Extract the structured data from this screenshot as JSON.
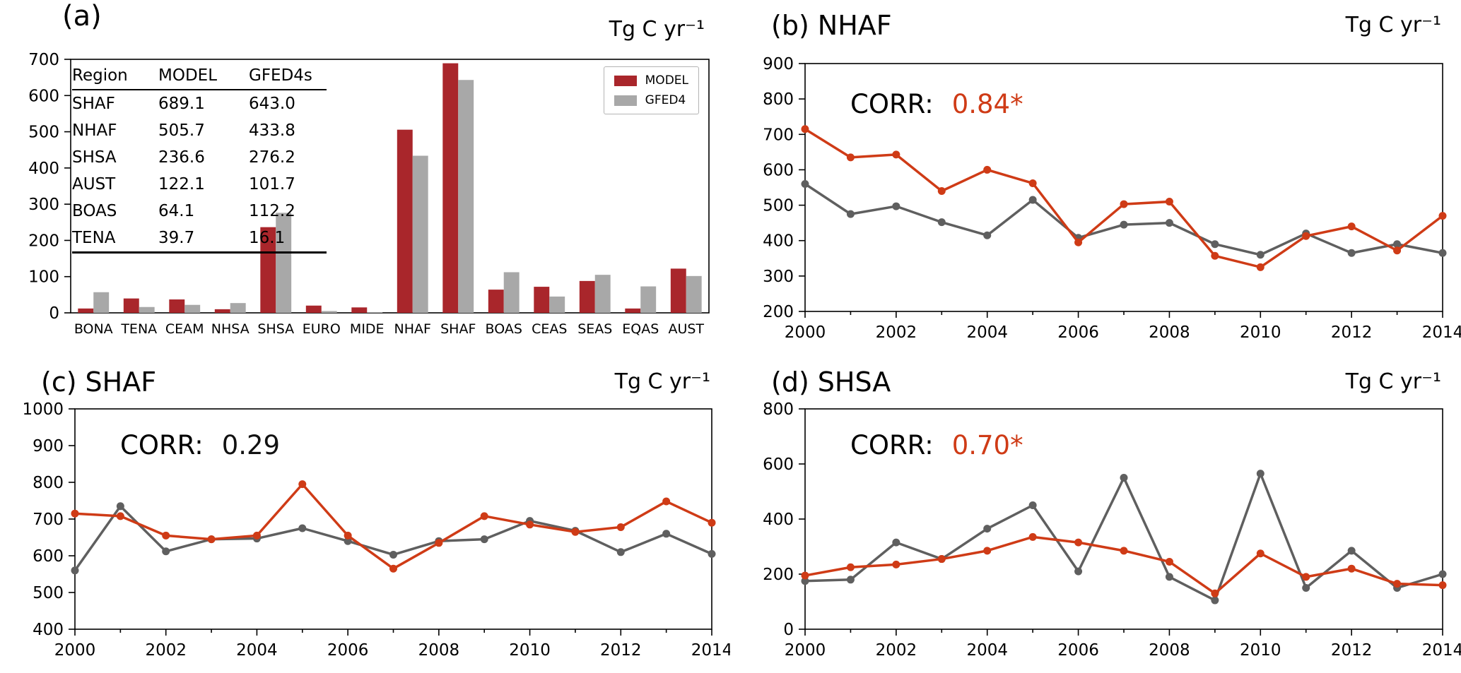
{
  "figure": {
    "background": "#ffffff"
  },
  "colors": {
    "model_bar": "#a9262b",
    "gfed4_bar": "#a8a8a8",
    "model_line": "#cf3b16",
    "gfed4_line": "#5f5f5f",
    "corr_highlight": "#cf3b16",
    "corr_plain": "#111111",
    "axis": "#000000"
  },
  "panels": {
    "a": {
      "label": "(a)",
      "units": "Tg C yr⁻¹",
      "legend": [
        {
          "name": "MODEL"
        },
        {
          "name": "GFED4"
        }
      ],
      "table": {
        "headers": [
          "Region",
          "MODEL",
          "GFED4s"
        ],
        "rows": [
          [
            "SHAF",
            "689.1",
            "643.0"
          ],
          [
            "NHAF",
            "505.7",
            "433.8"
          ],
          [
            "SHSA",
            "236.6",
            "276.2"
          ],
          [
            "AUST",
            "122.1",
            "101.7"
          ],
          [
            "BOAS",
            "64.1",
            "112.2"
          ],
          [
            "TENA",
            "39.7",
            "16.1"
          ]
        ]
      }
    },
    "b": {
      "label": "(b)",
      "title": "NHAF",
      "units": "Tg C yr⁻¹",
      "corr_label": "CORR:",
      "corr_value": "0.84*"
    },
    "c": {
      "label": "(c)",
      "title": "SHAF",
      "units": "Tg C yr⁻¹",
      "corr_label": "CORR:",
      "corr_value": "0.29"
    },
    "d": {
      "label": "(d)",
      "title": "SHSA",
      "units": "Tg C yr⁻¹",
      "corr_label": "CORR:",
      "corr_value": "0.70*"
    }
  },
  "chart_data": [
    {
      "type": "bar",
      "panel": "a",
      "title": "",
      "xlabel": "",
      "ylabel": "Tg C yr⁻¹",
      "legend_position": "upper right",
      "grid": false,
      "categories": [
        "BONA",
        "TENA",
        "CEAM",
        "NHSA",
        "SHSA",
        "EURO",
        "MIDE",
        "NHAF",
        "SHAF",
        "BOAS",
        "CEAS",
        "SEAS",
        "EQAS",
        "AUST"
      ],
      "series": [
        {
          "name": "MODEL",
          "color_key": "model_bar",
          "values": [
            12,
            39.7,
            37,
            10,
            236.6,
            20,
            15,
            505.7,
            689.1,
            64.1,
            72,
            88,
            12,
            122.1
          ]
        },
        {
          "name": "GFED4",
          "color_key": "gfed4_bar",
          "values": [
            57,
            16.1,
            22,
            27,
            276.2,
            5,
            2,
            433.8,
            643.0,
            112.2,
            45,
            105,
            73,
            101.7
          ]
        }
      ],
      "ylim": [
        0,
        700
      ],
      "yticks": [
        0,
        100,
        200,
        300,
        400,
        500,
        600,
        700
      ]
    },
    {
      "type": "line",
      "panel": "b",
      "title": "NHAF",
      "xlabel": "",
      "ylabel": "Tg C yr⁻¹",
      "corr": "0.84*",
      "grid": false,
      "x": [
        2000,
        2001,
        2002,
        2003,
        2004,
        2005,
        2006,
        2007,
        2008,
        2009,
        2010,
        2011,
        2012,
        2013,
        2014
      ],
      "xticks": [
        2000,
        2002,
        2004,
        2006,
        2008,
        2010,
        2012,
        2014
      ],
      "ylim": [
        200,
        900
      ],
      "yticks": [
        200,
        300,
        400,
        500,
        600,
        700,
        800,
        900
      ],
      "series": [
        {
          "name": "MODEL",
          "color_key": "model_line",
          "values": [
            715,
            635,
            643,
            540,
            600,
            562,
            395,
            503,
            510,
            357,
            325,
            413,
            440,
            372,
            470
          ]
        },
        {
          "name": "GFED4",
          "color_key": "gfed4_line",
          "values": [
            560,
            475,
            497,
            452,
            415,
            515,
            408,
            445,
            450,
            390,
            360,
            420,
            365,
            390,
            365
          ]
        }
      ]
    },
    {
      "type": "line",
      "panel": "c",
      "title": "SHAF",
      "xlabel": "",
      "ylabel": "Tg C yr⁻¹",
      "corr": "0.29",
      "grid": false,
      "x": [
        2000,
        2001,
        2002,
        2003,
        2004,
        2005,
        2006,
        2007,
        2008,
        2009,
        2010,
        2011,
        2012,
        2013,
        2014
      ],
      "xticks": [
        2000,
        2002,
        2004,
        2006,
        2008,
        2010,
        2012,
        2014
      ],
      "ylim": [
        400,
        1000
      ],
      "yticks": [
        400,
        500,
        600,
        700,
        800,
        900,
        1000
      ],
      "series": [
        {
          "name": "MODEL",
          "color_key": "model_line",
          "values": [
            715,
            708,
            655,
            645,
            655,
            795,
            655,
            565,
            635,
            708,
            685,
            665,
            678,
            748,
            690
          ]
        },
        {
          "name": "GFED4",
          "color_key": "gfed4_line",
          "values": [
            560,
            735,
            612,
            645,
            647,
            675,
            640,
            603,
            640,
            645,
            695,
            668,
            610,
            660,
            605
          ]
        }
      ]
    },
    {
      "type": "line",
      "panel": "d",
      "title": "SHSA",
      "xlabel": "",
      "ylabel": "Tg C yr⁻¹",
      "corr": "0.70*",
      "grid": false,
      "x": [
        2000,
        2001,
        2002,
        2003,
        2004,
        2005,
        2006,
        2007,
        2008,
        2009,
        2010,
        2011,
        2012,
        2013,
        2014
      ],
      "xticks": [
        2000,
        2002,
        2004,
        2006,
        2008,
        2010,
        2012,
        2014
      ],
      "ylim": [
        0,
        800
      ],
      "yticks": [
        0,
        200,
        400,
        600,
        800
      ],
      "series": [
        {
          "name": "MODEL",
          "color_key": "model_line",
          "values": [
            195,
            225,
            235,
            255,
            285,
            335,
            315,
            285,
            245,
            130,
            275,
            190,
            220,
            165,
            160
          ]
        },
        {
          "name": "GFED4",
          "color_key": "gfed4_line",
          "values": [
            175,
            180,
            315,
            255,
            365,
            450,
            210,
            550,
            190,
            105,
            565,
            150,
            285,
            150,
            200
          ]
        }
      ]
    }
  ]
}
